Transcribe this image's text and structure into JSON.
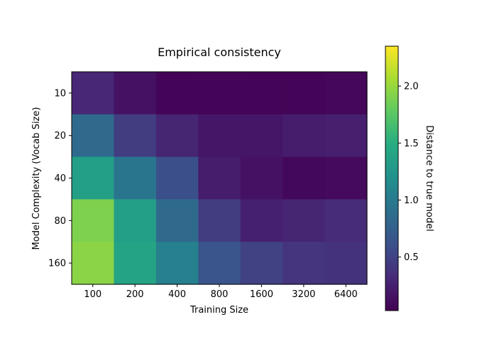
{
  "chart_data": {
    "type": "heatmap",
    "title": "Empirical consistency",
    "xlabel": "Training Size",
    "ylabel": "Model Complexity (Vocab Size)",
    "x_categories": [
      "100",
      "200",
      "400",
      "800",
      "1600",
      "3200",
      "6400"
    ],
    "y_categories": [
      "10",
      "20",
      "40",
      "80",
      "160"
    ],
    "values": [
      [
        0.3,
        0.15,
        0.05,
        0.06,
        0.05,
        0.05,
        0.07
      ],
      [
        0.85,
        0.45,
        0.28,
        0.18,
        0.18,
        0.22,
        0.24
      ],
      [
        1.35,
        0.95,
        0.6,
        0.22,
        0.15,
        0.08,
        0.09
      ],
      [
        1.9,
        1.35,
        0.85,
        0.45,
        0.25,
        0.28,
        0.33
      ],
      [
        1.95,
        1.4,
        1.05,
        0.65,
        0.5,
        0.4,
        0.38
      ]
    ],
    "colorbar": {
      "label": "Distance to true model",
      "range": [
        0.03,
        2.35
      ],
      "ticks": [
        0.5,
        1.0,
        1.5,
        2.0
      ],
      "tick_labels": [
        "0.5",
        "1.0",
        "1.5",
        "2.0"
      ]
    },
    "colormap": "viridis"
  }
}
